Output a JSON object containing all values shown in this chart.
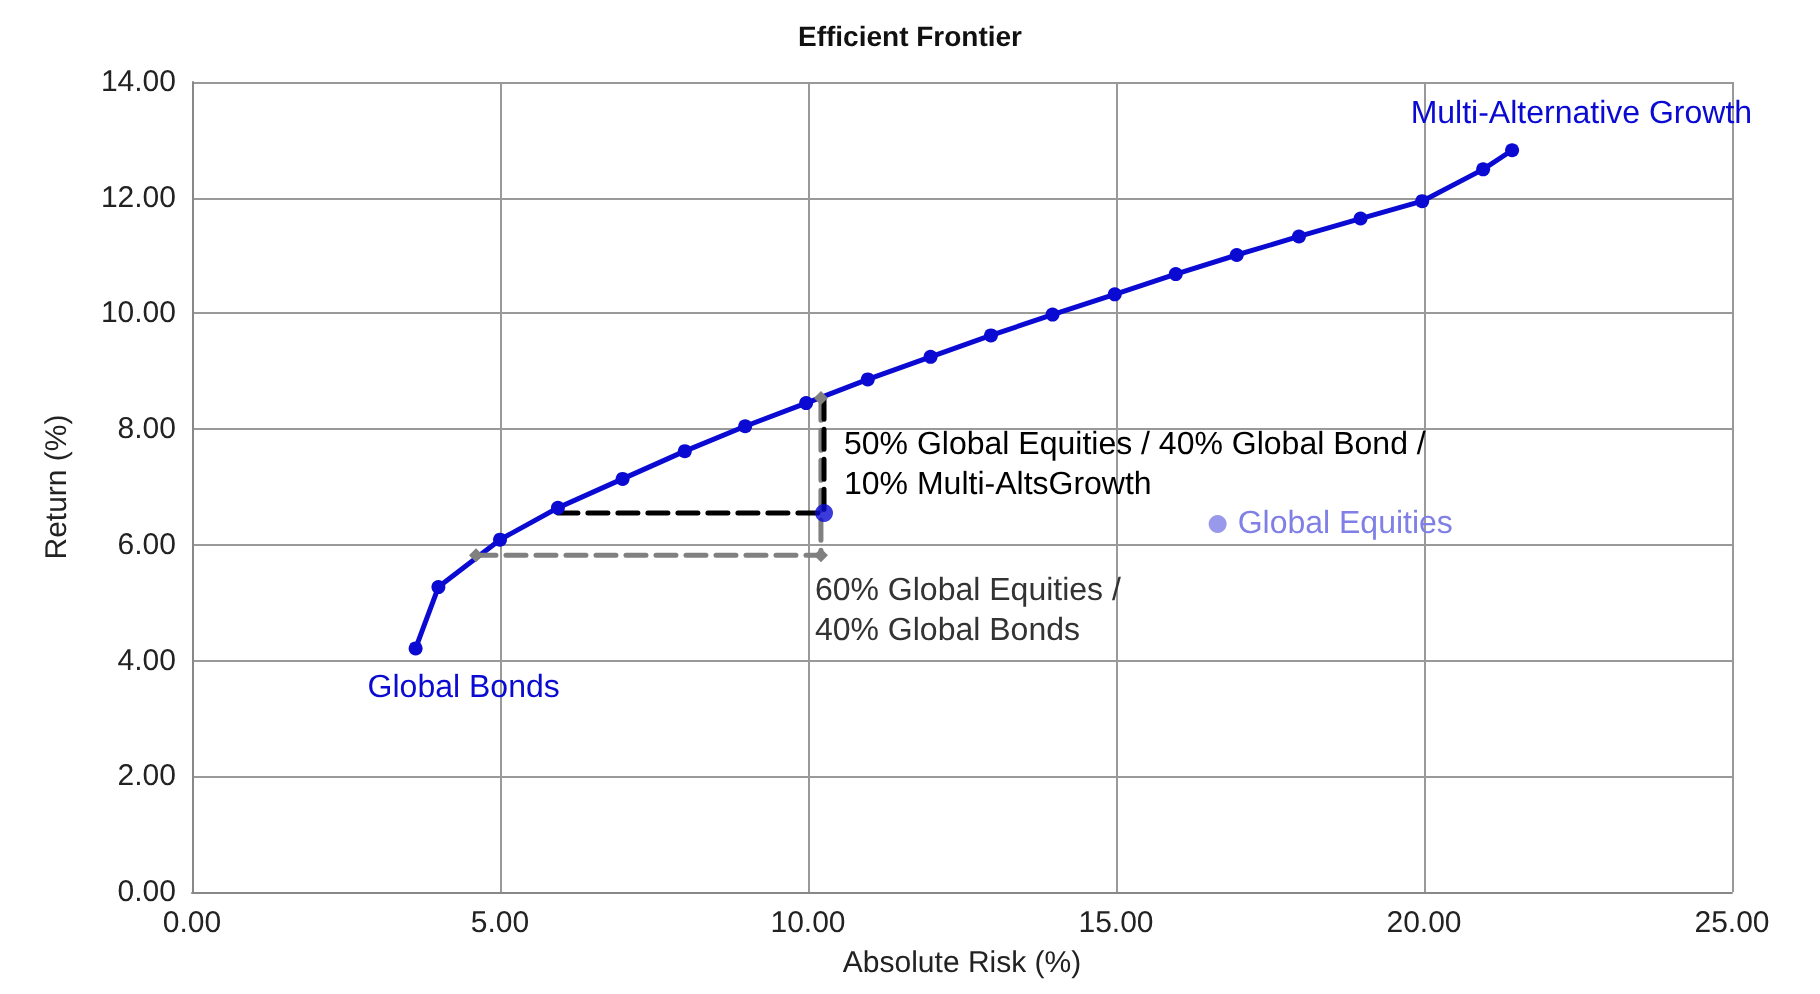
{
  "chart_data": {
    "type": "line",
    "title": "Efficient Frontier",
    "xlabel": "Absolute Risk (%)",
    "ylabel": "Return (%)",
    "xlim": [
      0,
      25
    ],
    "ylim": [
      0,
      14
    ],
    "xticks": [
      {
        "value": 0,
        "label": "0.00"
      },
      {
        "value": 5,
        "label": "5.00"
      },
      {
        "value": 10,
        "label": "10.00"
      },
      {
        "value": 15,
        "label": "15.00"
      },
      {
        "value": 20,
        "label": "20.00"
      },
      {
        "value": 25,
        "label": "25.00"
      }
    ],
    "yticks": [
      {
        "value": 0,
        "label": "0.00"
      },
      {
        "value": 2,
        "label": "2.00"
      },
      {
        "value": 4,
        "label": "4.00"
      },
      {
        "value": 6,
        "label": "6.00"
      },
      {
        "value": 8,
        "label": "8.00"
      },
      {
        "value": 10,
        "label": "10.00"
      },
      {
        "value": 12,
        "label": "12.00"
      },
      {
        "value": 14,
        "label": "14.00"
      }
    ],
    "grid": true,
    "series": [
      {
        "color": "#0a0ad2",
        "marker": "circle",
        "line_style": "solid",
        "x": [
          3.63,
          4.0,
          5.0,
          5.94,
          6.99,
          8.0,
          8.98,
          9.97,
          10.97,
          11.99,
          12.97,
          13.97,
          14.98,
          15.97,
          16.96,
          17.97,
          18.97,
          19.97,
          20.96,
          21.43
        ],
        "values": [
          4.21,
          5.27,
          6.09,
          6.64,
          7.14,
          7.62,
          8.05,
          8.45,
          8.86,
          9.25,
          9.62,
          9.98,
          10.33,
          10.68,
          11.01,
          11.33,
          11.64,
          11.94,
          12.49,
          12.82
        ]
      },
      {
        "color": "#808080",
        "marker": "diamond",
        "line_style": "dashed",
        "x": [
          4.61,
          10.21,
          10.21
        ],
        "values": [
          5.82,
          5.82,
          8.54
        ]
      },
      {
        "color": "#000000",
        "marker": "none",
        "line_style": "dashed",
        "x": [
          5.94,
          10.26,
          10.26
        ],
        "values": [
          6.55,
          6.55,
          8.54
        ]
      },
      {
        "type": "scatter",
        "color": "#0a0ad2",
        "marker": "circle",
        "x": [
          10.26
        ],
        "values": [
          6.55
        ]
      },
      {
        "type": "scatter",
        "color": "#7f7fe6",
        "marker": "circle",
        "x": [
          16.65
        ],
        "values": [
          6.36
        ]
      }
    ],
    "annotations": [
      {
        "text": "Global Bonds",
        "x": 3.63,
        "y": 4.21
      },
      {
        "text": "Multi-Alternative Growth",
        "x": 21.43,
        "y": 12.82
      },
      {
        "text": "Global Equities",
        "x": 16.65,
        "y": 6.36
      },
      {
        "text": "50% Global Equities / 40% Global Bond /\n10% Multi-AltsGrowth",
        "x": 10.26,
        "y": 6.55
      },
      {
        "text": "60% Global Equities /\n40% Global Bonds",
        "x": 10.21,
        "y": 5.82
      }
    ]
  }
}
